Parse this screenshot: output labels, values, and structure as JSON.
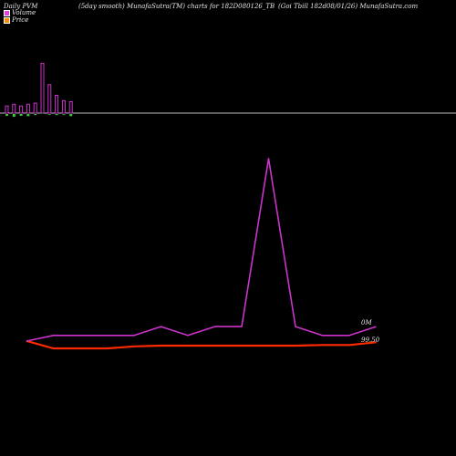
{
  "header": {
    "left": "Daily PVM",
    "middle": "(5day smooth) MunafaSutra(TM) charts for 182D080126_TB",
    "right": "(Goi  Tbill 182d08/01/26) MunafaSutra.com"
  },
  "legend": {
    "volume_label": "Volume",
    "price_label": "Price",
    "volume_color": "#e040e0",
    "price_color": "#ff8c00"
  },
  "right_labels": {
    "volume": "0M",
    "price": "99.50"
  },
  "chart_data": [
    {
      "type": "bar",
      "categories": [
        "1",
        "2",
        "3",
        "4",
        "5",
        "6",
        "7",
        "8",
        "9",
        "10"
      ],
      "series": [
        {
          "values": [
            2,
            2.5,
            2,
            2.5,
            2.8,
            14,
            8,
            5,
            3.5,
            3.2
          ],
          "color": "#cc33cc"
        },
        {
          "values": [
            -0.5,
            -0.8,
            -0.5,
            -0.6,
            -0.3,
            0,
            -0.2,
            -0.3,
            -0.2,
            -0.6
          ],
          "color": "#33cc33"
        }
      ]
    },
    {
      "type": "line",
      "x": [
        1,
        2,
        3,
        4,
        5,
        6,
        7,
        8,
        9,
        10,
        11,
        12,
        13,
        14
      ],
      "series": [
        {
          "values": [
            0,
            1.8,
            1.8,
            1.8,
            1.8,
            4.6,
            1.8,
            4.6,
            4.6,
            58,
            4.6,
            1.8,
            1.8,
            4.6
          ],
          "color": "#cc33cc"
        },
        {
          "values": [
            99.54,
            99.43,
            99.43,
            99.43,
            99.46,
            99.47,
            99.47,
            99.47,
            99.47,
            99.47,
            99.47,
            99.48,
            99.48,
            99.52
          ],
          "color": "#ff2a00"
        }
      ]
    }
  ]
}
